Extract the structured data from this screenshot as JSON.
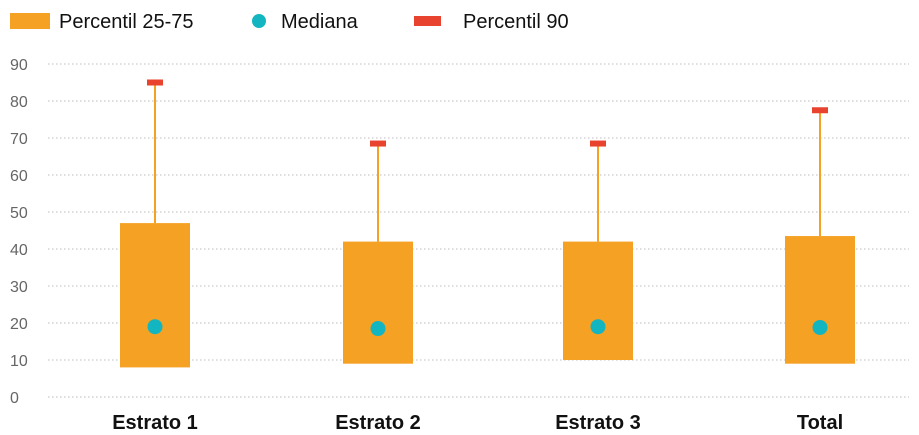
{
  "chart_data": {
    "type": "bar",
    "subtype": "box-range",
    "categories": [
      "Estrato 1",
      "Estrato 2",
      "Estrato 3",
      "Total"
    ],
    "series": [
      {
        "name": "Percentil 25-75",
        "color": "#F5A123",
        "low": [
          8,
          9,
          10,
          9
        ],
        "high": [
          47,
          42,
          42,
          43.5
        ]
      },
      {
        "name": "Mediana",
        "color": "#13B5C0",
        "values": [
          19,
          18.5,
          19,
          18.8
        ]
      },
      {
        "name": "Percentil 90",
        "color": "#E8432E",
        "values": [
          85,
          68.5,
          68.5,
          77.5
        ]
      }
    ],
    "ylim": [
      0,
      90
    ],
    "yticks": [
      0,
      10,
      20,
      30,
      40,
      50,
      60,
      70,
      80,
      90
    ],
    "grid": true,
    "legend": "top-left",
    "xlabel": "",
    "ylabel": "",
    "title": ""
  },
  "legend": {
    "p2575": "Percentil 25-75",
    "median": "Mediana",
    "p90": "Percentil 90"
  },
  "colors": {
    "box": "#F5A123",
    "median": "#13B5C0",
    "p90": "#E8432E",
    "grid": "#BDBDBD"
  }
}
